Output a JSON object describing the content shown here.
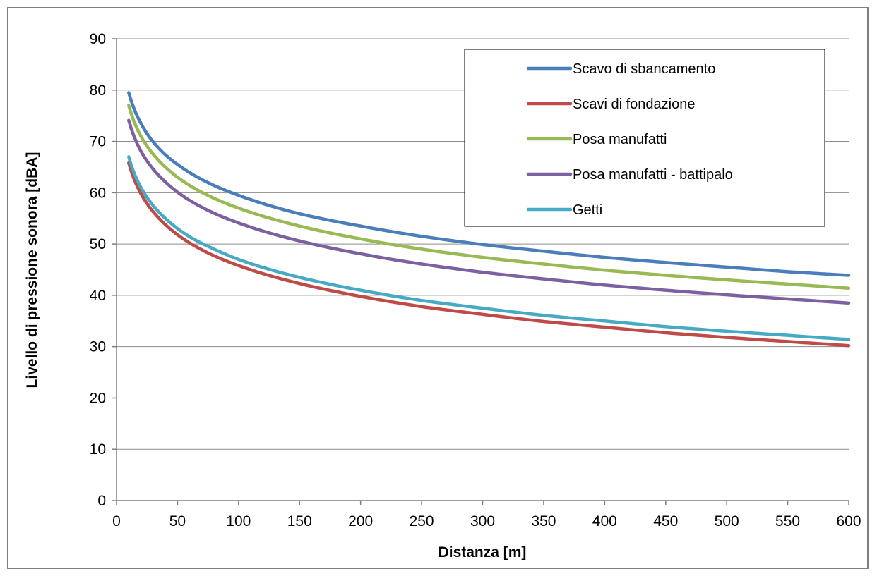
{
  "chart_data": {
    "type": "line",
    "title": "",
    "xlabel": "Distanza [m]",
    "ylabel": "Livello di pressione sonora [dBA]",
    "xlim": [
      0,
      600
    ],
    "ylim": [
      0,
      90
    ],
    "xticks": [
      0,
      50,
      100,
      150,
      200,
      250,
      300,
      350,
      400,
      450,
      500,
      550,
      600
    ],
    "yticks": [
      0,
      10,
      20,
      30,
      40,
      50,
      60,
      70,
      80,
      90
    ],
    "grid": "horizontal",
    "legend_position": "top-right",
    "x": [
      10,
      20,
      30,
      40,
      50,
      60,
      80,
      100,
      150,
      200,
      250,
      300,
      350,
      400,
      450,
      500,
      550,
      600
    ],
    "series": [
      {
        "name": "Scavo di sbancamento",
        "color": "#4a7ebb",
        "values": [
          79.5,
          73.5,
          69.9,
          67.4,
          65.5,
          63.9,
          61.4,
          59.5,
          55.9,
          53.5,
          51.5,
          49.9,
          48.6,
          47.4,
          46.4,
          45.5,
          44.6,
          43.9
        ]
      },
      {
        "name": "Scavi di fondazione",
        "color": "#be4b48",
        "values": [
          65.8,
          59.8,
          56.3,
          53.8,
          51.8,
          50.2,
          47.7,
          45.8,
          42.3,
          39.8,
          37.8,
          36.3,
          34.9,
          33.8,
          32.7,
          31.8,
          31.0,
          30.2
        ]
      },
      {
        "name": "Posa manufatti",
        "color": "#98b954",
        "values": [
          77.0,
          71.0,
          67.5,
          65.0,
          63.0,
          61.4,
          58.9,
          57.0,
          53.5,
          51.0,
          49.0,
          47.4,
          46.1,
          44.9,
          43.9,
          43.0,
          42.2,
          41.4
        ]
      },
      {
        "name": "Posa manufatti - battipalo",
        "color": "#7d60a0",
        "values": [
          74.1,
          68.1,
          64.6,
          62.1,
          60.1,
          58.5,
          56.0,
          54.1,
          50.6,
          48.1,
          46.1,
          44.5,
          43.2,
          42.0,
          41.0,
          40.1,
          39.3,
          38.5
        ]
      },
      {
        "name": "Getti",
        "color": "#46aac5",
        "values": [
          67.0,
          61.0,
          57.5,
          55.0,
          53.0,
          51.4,
          49.0,
          47.0,
          43.5,
          41.0,
          39.0,
          37.5,
          36.1,
          35.0,
          33.9,
          33.0,
          32.2,
          31.4
        ]
      }
    ]
  }
}
